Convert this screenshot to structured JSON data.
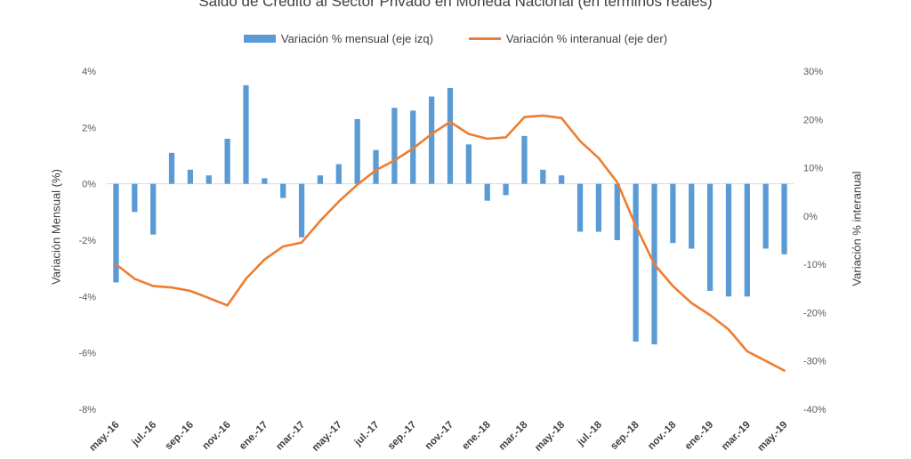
{
  "chart_data": {
    "type": "bar+line",
    "title": "Saldo de Crédito al Sector Privado en Moneda Nacional (en términos reales)",
    "ylabel": "Variación Mensual (%)",
    "y2label": "Variación % interanual",
    "ylim": [
      -8,
      4
    ],
    "y2lim": [
      -40,
      30
    ],
    "yticks": [
      "-8%",
      "-6%",
      "-4%",
      "-2%",
      "0%",
      "2%",
      "4%"
    ],
    "y2ticks": [
      "-40%",
      "-30%",
      "-20%",
      "-10%",
      "0%",
      "10%",
      "20%",
      "30%"
    ],
    "grid": false,
    "legend_position": "top",
    "categories": [
      "may.-16",
      "jun.-16",
      "jul.-16",
      "ago.-16",
      "sep.-16",
      "oct.-16",
      "nov.-16",
      "dic.-16",
      "ene.-17",
      "feb.-17",
      "mar.-17",
      "abr.-17",
      "may.-17",
      "jun.-17",
      "jul.-17",
      "ago.-17",
      "sep.-17",
      "oct.-17",
      "nov.-17",
      "dic.-17",
      "ene.-18",
      "feb.-18",
      "mar.-18",
      "abr.-18",
      "may.-18",
      "jun.-18",
      "jul.-18",
      "ago.-18",
      "sep.-18",
      "oct.-18",
      "nov.-18",
      "dic.-18",
      "ene.-19",
      "feb.-19",
      "mar.-19",
      "abr.-19",
      "may.-19"
    ],
    "tick_labels": [
      "may.-16",
      "jul.-16",
      "sep.-16",
      "nov.-16",
      "ene.-17",
      "mar.-17",
      "may.-17",
      "jul.-17",
      "sep.-17",
      "nov.-17",
      "ene.-18",
      "mar.-18",
      "may.-18",
      "jul.-18",
      "sep.-18",
      "nov.-18",
      "ene.-19",
      "mar.-19",
      "may.-19"
    ],
    "series": [
      {
        "name": "Variación % mensual (eje izq)",
        "type": "bar",
        "axis": "left",
        "color": "#5B9BD5",
        "values": [
          -3.5,
          -1.0,
          -1.8,
          1.1,
          0.5,
          0.3,
          1.6,
          3.5,
          0.2,
          -0.5,
          -1.9,
          0.3,
          0.7,
          2.3,
          1.2,
          2.7,
          2.6,
          3.1,
          3.4,
          1.4,
          -0.6,
          -0.4,
          1.7,
          0.5,
          0.3,
          -1.7,
          -1.7,
          -2.0,
          -5.6,
          -5.7,
          -2.1,
          -2.3,
          -3.8,
          -4.0,
          -4.0,
          -2.3,
          -2.5
        ]
      },
      {
        "name": "Variación % interanual (eje der)",
        "type": "line",
        "axis": "right",
        "color": "#ED7D31",
        "values": [
          -10,
          -13,
          -14.5,
          -14.8,
          -15.5,
          -17,
          -18.5,
          -13,
          -9,
          -6.3,
          -5.5,
          -1,
          3,
          6.5,
          9.5,
          11.5,
          14,
          17,
          19.5,
          17,
          16,
          16.3,
          20.5,
          20.8,
          20.3,
          15.5,
          12,
          7,
          -2,
          -10,
          -14.5,
          -18,
          -20.5,
          -23.5,
          -28,
          -30,
          -32
        ]
      }
    ]
  }
}
